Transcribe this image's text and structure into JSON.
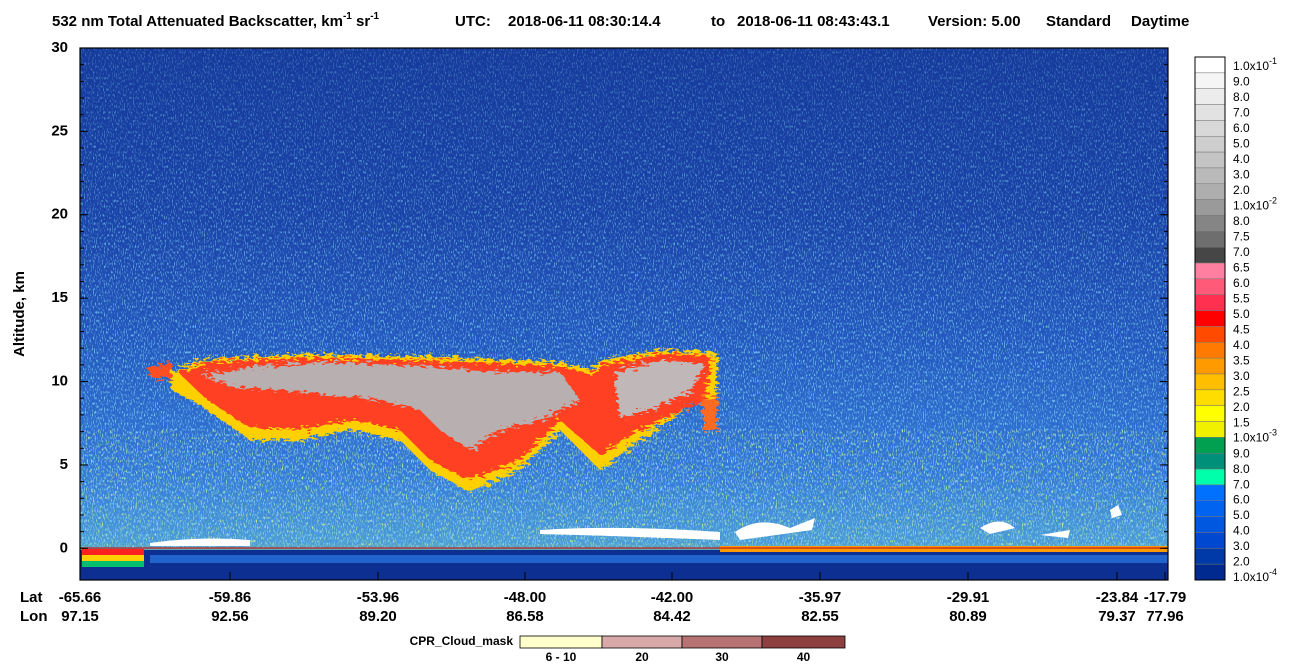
{
  "header": {
    "quantity": "532 nm Total Attenuated Backscatter, km",
    "sup1": "-1",
    "unit2": " sr",
    "sup2": "-1",
    "utc": "UTC:",
    "start": "2018-06-11 08:30:14.4",
    "to": "to",
    "end": "2018-06-11 08:43:43.1",
    "version": "Version: 5.00",
    "product": "Standard",
    "time": "Daytime"
  },
  "chart_data": {
    "type": "curtain",
    "ylabel": "Altitude, km",
    "ylim": [
      -1.9,
      30
    ],
    "yticks": [
      0,
      5,
      10,
      15,
      20,
      25,
      30
    ],
    "row_labels": [
      "Lat",
      "Lon"
    ],
    "lat": [
      "-65.66",
      "-59.86",
      "-53.96",
      "-48.00",
      "-42.00",
      "-35.97",
      "-29.91",
      "-23.84",
      "-17.79"
    ],
    "lon": [
      "97.15",
      "92.56",
      "89.20",
      "86.58",
      "84.42",
      "82.55",
      "80.89",
      "79.37",
      "77.96"
    ]
  },
  "colorbar": {
    "labels": [
      {
        "base": "1.0x10",
        "exp": "-1"
      },
      "9.0",
      "8.0",
      "7.0",
      "6.0",
      "5.0",
      "4.0",
      "3.0",
      "2.0",
      {
        "base": "1.0x10",
        "exp": "-2"
      },
      "8.0",
      "7.5",
      "7.0",
      "6.5",
      "6.0",
      "5.5",
      "5.0",
      "4.5",
      "4.0",
      "3.5",
      "3.0",
      "2.5",
      "2.0",
      "1.5",
      {
        "base": "1.0x10",
        "exp": "-3"
      },
      "9.0",
      "8.0",
      "7.0",
      "6.0",
      "5.0",
      "4.0",
      "3.0",
      "2.0",
      {
        "base": "1.0x10",
        "exp": "-4"
      }
    ],
    "colors": [
      "#ffffff",
      "#f5f5f5",
      "#ececec",
      "#e2e2e2",
      "#d8d8d8",
      "#cecece",
      "#c4c4c4",
      "#bababa",
      "#aeaeae",
      "#9a9a9a",
      "#858585",
      "#6e6e6e",
      "#464646",
      "#ff7fa0",
      "#ff5a78",
      "#ff3050",
      "#ff0000",
      "#ff4a00",
      "#ff7a00",
      "#ff9a00",
      "#ffbe00",
      "#ffdd00",
      "#ffff00",
      "#f0f000",
      "#00a050",
      "#00907a",
      "#00ffaa",
      "#0070ff",
      "#0064f0",
      "#0058e0",
      "#0048d0",
      "#003aa8",
      "#002a90"
    ]
  },
  "cpr_legend": {
    "title": "CPR_Cloud_mask",
    "labels": [
      "6 - 10",
      "20",
      "30",
      "40"
    ],
    "colors": [
      "#ffffcc",
      "#d9a9a9",
      "#b77373",
      "#8e3f3f"
    ]
  }
}
